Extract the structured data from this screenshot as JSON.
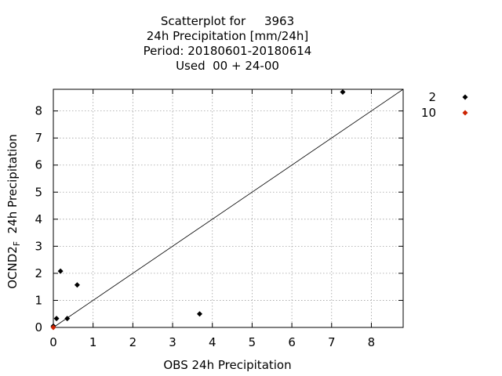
{
  "chart_data": {
    "type": "scatter",
    "title": [
      "Scatterplot for     3963",
      "24h Precipitation [mm/24h]",
      "Period: 20180601-20180614",
      "Used  00 + 24-00"
    ],
    "xlabel": "OBS 24h Precipitation",
    "ylabel": {
      "main": "OCND2",
      "subscript": "F",
      "rest": "  24h Precipitation"
    },
    "xlim": [
      0,
      8.8
    ],
    "ylim": [
      0,
      8.8
    ],
    "xticks": [
      0,
      1,
      2,
      3,
      4,
      5,
      6,
      7,
      8
    ],
    "yticks": [
      0,
      1,
      2,
      3,
      4,
      5,
      6,
      7,
      8
    ],
    "grid": true,
    "diagonal_line": true,
    "legend_position": "right-outside-top",
    "series": [
      {
        "name": "2",
        "color": "#000000",
        "marker": "diamond",
        "points": [
          {
            "x": 0.0,
            "y": 0.05
          },
          {
            "x": 0.08,
            "y": 0.33
          },
          {
            "x": 0.18,
            "y": 2.08
          },
          {
            "x": 0.35,
            "y": 0.33
          },
          {
            "x": 0.6,
            "y": 1.57
          },
          {
            "x": 3.68,
            "y": 0.5
          },
          {
            "x": 7.28,
            "y": 8.7
          }
        ]
      },
      {
        "name": "10",
        "color": "#cc2200",
        "marker": "diamond",
        "points": [
          {
            "x": 0.0,
            "y": 0.0
          }
        ]
      }
    ]
  }
}
